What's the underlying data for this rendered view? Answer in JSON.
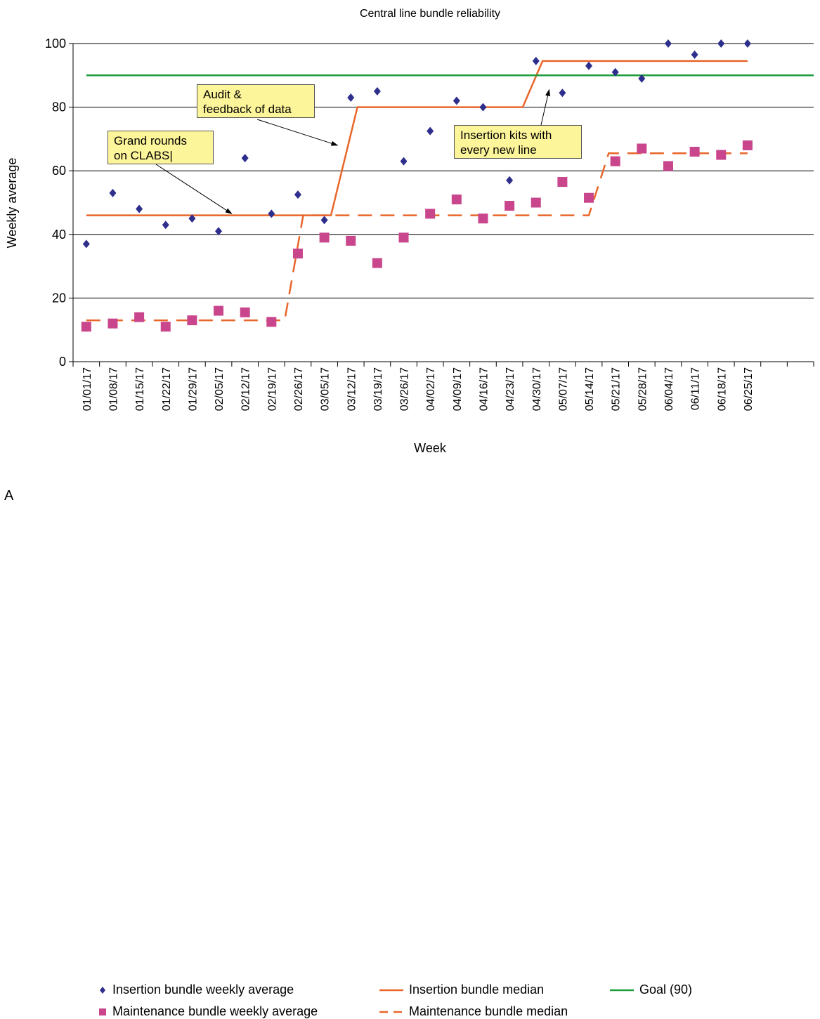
{
  "panel_letter": "A",
  "chart_data": {
    "type": "line",
    "title": "Central line bundle reliability",
    "xlabel": "Week",
    "ylabel": "Weekly average",
    "ylim": [
      0,
      100
    ],
    "yticks": [
      0,
      20,
      40,
      60,
      80,
      100
    ],
    "grid": "horizontal",
    "legend_position": "bottom",
    "categories": [
      "01/01/17",
      "01/08/17",
      "01/15/17",
      "01/22/17",
      "01/29/17",
      "02/05/17",
      "02/12/17",
      "02/19/17",
      "02/26/17",
      "03/05/17",
      "03/12/17",
      "03/19/17",
      "03/26/17",
      "04/02/17",
      "04/09/17",
      "04/16/17",
      "04/23/17",
      "04/30/17",
      "05/07/17",
      "05/14/17",
      "05/21/17",
      "05/28/17",
      "06/04/17",
      "06/11/17",
      "06/18/17",
      "06/25/17",
      "",
      ""
    ],
    "series": [
      {
        "name": "Insertion bundle weekly average",
        "kind": "scatter",
        "marker": "diamond",
        "color": "#2e2e8c",
        "values": [
          37,
          53,
          48,
          43,
          45,
          41,
          64,
          46.5,
          52.5,
          44.5,
          83,
          85,
          63,
          72.5,
          82,
          80,
          57,
          94.5,
          84.5,
          93,
          91,
          89,
          100,
          96.5,
          100,
          100
        ]
      },
      {
        "name": "Maintenance bundle weekly average",
        "kind": "scatter",
        "marker": "square",
        "color": "#c9468c",
        "values": [
          11,
          12,
          14,
          11,
          13,
          16,
          15.5,
          12.5,
          34,
          39,
          38,
          31,
          39,
          46.5,
          51,
          45,
          49,
          50,
          56.5,
          51.5,
          63,
          67,
          61.5,
          66,
          65,
          68
        ]
      },
      {
        "name": "Insertion bundle median",
        "kind": "line",
        "dash": "solid",
        "color": "#e8662a",
        "points": [
          [
            0,
            46
          ],
          [
            9.25,
            46
          ],
          [
            10.25,
            80
          ],
          [
            16.5,
            80
          ],
          [
            17.25,
            94.5
          ],
          [
            25,
            94.5
          ]
        ]
      },
      {
        "name": "Maintenance bundle median",
        "kind": "line",
        "dash": "dashed",
        "color": "#e8662a",
        "points": [
          [
            0,
            13
          ],
          [
            7.5,
            13
          ],
          [
            8.2,
            46
          ],
          [
            19,
            46
          ],
          [
            19.75,
            65.5
          ],
          [
            25,
            65.5
          ]
        ]
      },
      {
        "name": "Goal (90)",
        "kind": "line",
        "dash": "solid",
        "color": "#1e9e3c",
        "points": [
          [
            0,
            90
          ],
          [
            27.5,
            90
          ]
        ]
      }
    ],
    "annotations": [
      {
        "text": "Grand rounds\non CLABS|",
        "target": [
          5.5,
          46.5
        ]
      },
      {
        "text": "Audit &\nfeedback of data",
        "target": [
          9.5,
          68
        ]
      },
      {
        "text": "Insertion kits with\nevery new line",
        "target": [
          17.5,
          85.5
        ]
      }
    ]
  }
}
